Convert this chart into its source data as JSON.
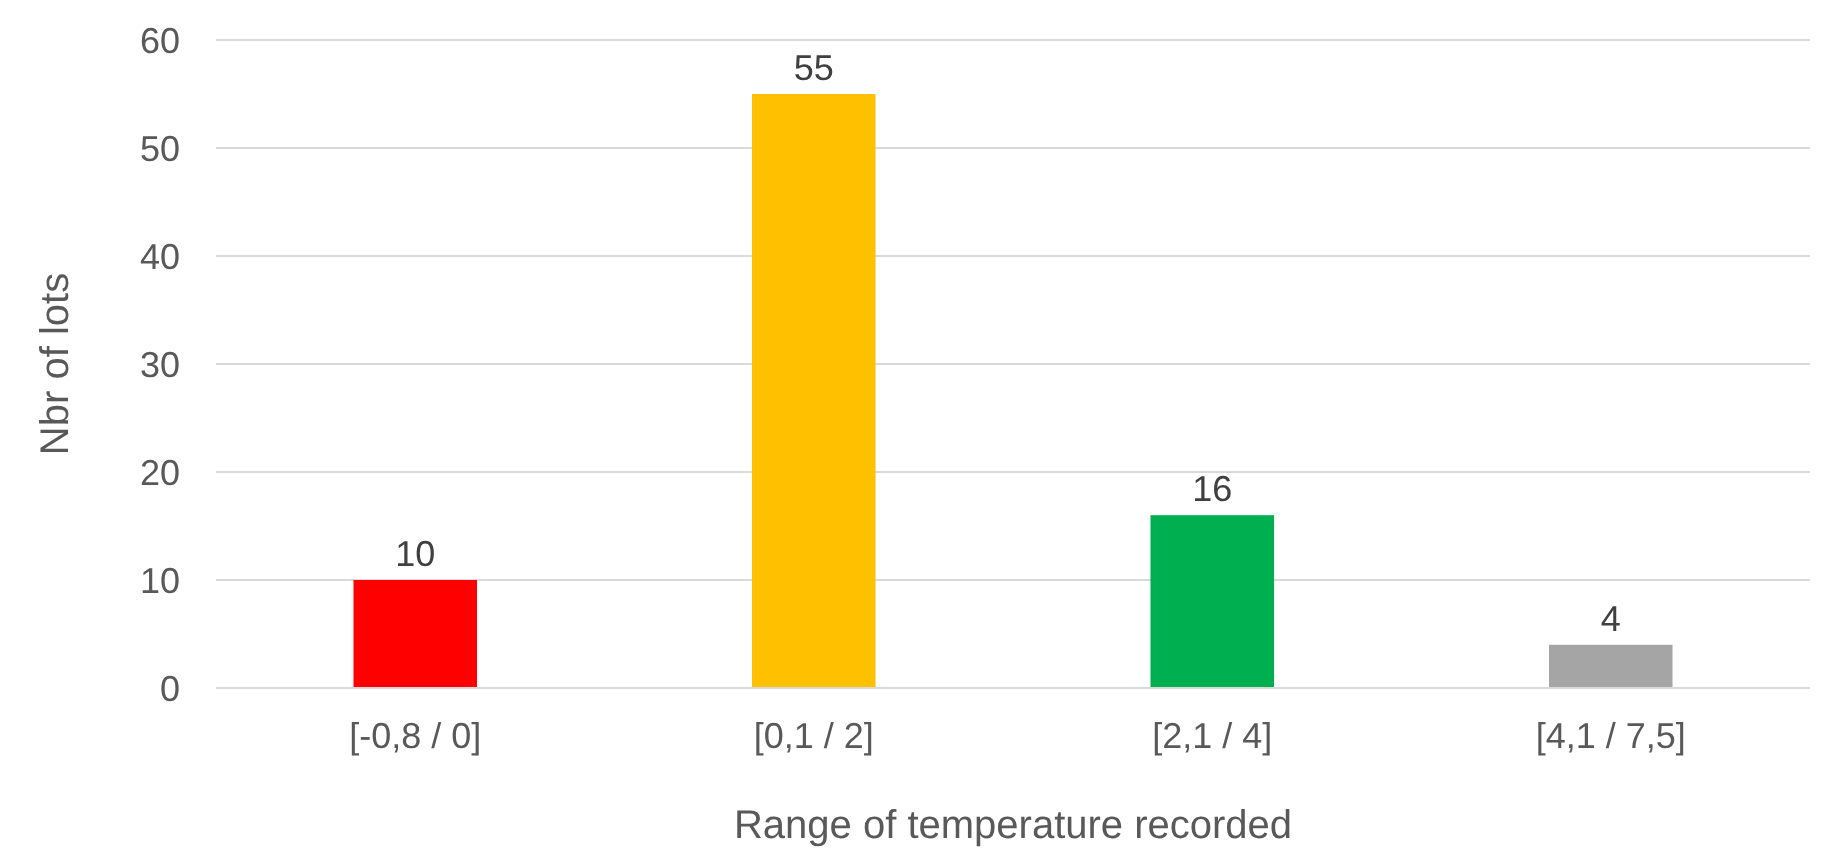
{
  "chart_data": {
    "type": "bar",
    "xlabel": "Range of temperature recorded",
    "ylabel": "Nbr of lots",
    "categories": [
      "[-0,8 / 0]",
      "[0,1 / 2]",
      "[2,1 / 4]",
      "[4,1 / 7,5]"
    ],
    "values": [
      10,
      55,
      16,
      4
    ],
    "colors": [
      "#ff0000",
      "#ffc000",
      "#00b050",
      "#a5a5a5"
    ],
    "ylim": [
      0,
      60
    ],
    "yticks": [
      0,
      10,
      20,
      30,
      40,
      50,
      60
    ],
    "grid": "y",
    "data_labels": true
  }
}
